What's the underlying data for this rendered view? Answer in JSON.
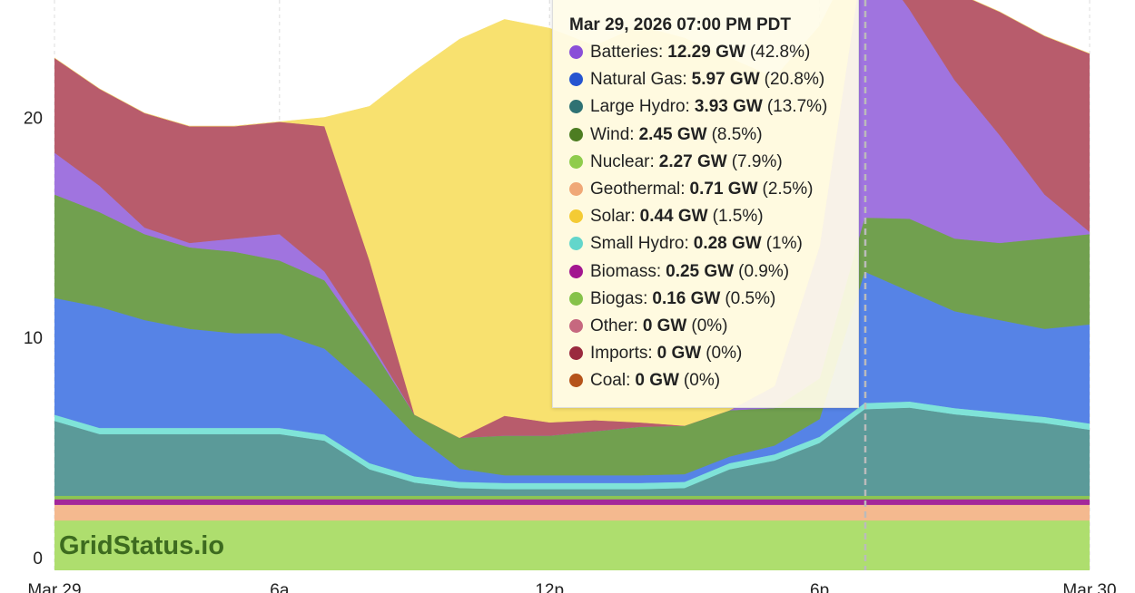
{
  "chart_data": {
    "type": "stacked_area",
    "x": [
      1,
      2,
      3,
      4,
      5,
      6,
      7,
      8,
      9,
      10,
      11,
      12,
      13,
      14,
      15,
      16,
      17,
      18,
      19,
      20,
      21,
      22,
      23,
      24
    ],
    "xlim": [
      1,
      24
    ],
    "xticks": [
      {
        "value": 1,
        "label": "Mar 29"
      },
      {
        "value": 6,
        "label": "6a"
      },
      {
        "value": 12,
        "label": "12p"
      },
      {
        "value": 18,
        "label": "6p"
      },
      {
        "value": 24,
        "label": "Mar 30"
      }
    ],
    "ylim": [
      0,
      25.9
    ],
    "yticks": [
      0,
      10,
      20
    ],
    "grid": true,
    "series": [
      {
        "color": "#aede6e",
        "values": [
          2.27,
          2.27,
          2.27,
          2.27,
          2.27,
          2.27,
          2.27,
          2.27,
          2.27,
          2.27,
          2.27,
          2.27,
          2.27,
          2.27,
          2.27,
          2.27,
          2.27,
          2.27,
          2.27,
          2.27,
          2.27,
          2.27,
          2.27,
          2.27
        ]
      },
      {
        "color": "#f4b98f",
        "values": [
          0.71,
          0.71,
          0.71,
          0.71,
          0.71,
          0.71,
          0.71,
          0.71,
          0.71,
          0.71,
          0.71,
          0.71,
          0.71,
          0.71,
          0.71,
          0.71,
          0.71,
          0.71,
          0.71,
          0.71,
          0.71,
          0.71,
          0.71,
          0.71
        ]
      },
      {
        "color": "#a3279a",
        "values": [
          0.25,
          0.25,
          0.25,
          0.25,
          0.25,
          0.25,
          0.25,
          0.25,
          0.25,
          0.25,
          0.25,
          0.25,
          0.25,
          0.25,
          0.25,
          0.25,
          0.25,
          0.25,
          0.25,
          0.25,
          0.25,
          0.25,
          0.25,
          0.25
        ]
      },
      {
        "color": "#8cc653",
        "values": [
          0.16,
          0.16,
          0.16,
          0.16,
          0.16,
          0.16,
          0.16,
          0.16,
          0.16,
          0.16,
          0.16,
          0.16,
          0.16,
          0.16,
          0.16,
          0.16,
          0.16,
          0.16,
          0.16,
          0.16,
          0.16,
          0.16,
          0.16,
          0.16
        ]
      },
      {
        "color": "#5b9a99",
        "values": [
          3.4,
          2.8,
          2.8,
          2.8,
          2.8,
          2.8,
          2.5,
          1.2,
          0.6,
          0.35,
          0.3,
          0.3,
          0.3,
          0.3,
          0.35,
          1.2,
          1.6,
          2.4,
          3.93,
          4.0,
          3.7,
          3.5,
          3.3,
          3.0
        ]
      },
      {
        "color": "#7fe3d8",
        "values": [
          0.28,
          0.28,
          0.28,
          0.28,
          0.28,
          0.28,
          0.28,
          0.28,
          0.28,
          0.28,
          0.28,
          0.28,
          0.28,
          0.28,
          0.28,
          0.28,
          0.28,
          0.28,
          0.28,
          0.28,
          0.28,
          0.28,
          0.28,
          0.28
        ]
      },
      {
        "color": "#5683e6",
        "values": [
          5.3,
          5.5,
          4.9,
          4.5,
          4.3,
          4.3,
          3.9,
          3.4,
          1.9,
          0.6,
          0.35,
          0.35,
          0.35,
          0.35,
          0.35,
          0.3,
          0.4,
          0.8,
          5.97,
          5.0,
          4.4,
          4.2,
          4.0,
          4.5
        ]
      },
      {
        "color": "#71a04f",
        "values": [
          4.7,
          4.3,
          3.9,
          3.7,
          3.7,
          3.3,
          3.1,
          2.0,
          0.9,
          1.4,
          1.8,
          1.8,
          2.0,
          2.2,
          2.2,
          2.1,
          1.7,
          1.85,
          2.45,
          3.3,
          3.3,
          3.5,
          4.1,
          4.1
        ]
      },
      {
        "color": "#a074df",
        "values": [
          1.9,
          1.2,
          0.3,
          0.2,
          0.6,
          1.2,
          0.4,
          0.2,
          0,
          0,
          0,
          0,
          0,
          0,
          0,
          0,
          1,
          6,
          12.29,
          9.5,
          7.2,
          4.9,
          2.0,
          0.1
        ]
      },
      {
        "color": "#b85c6c",
        "values": [
          4.3,
          4.4,
          5.2,
          5.3,
          5.1,
          5.1,
          6.6,
          3.6,
          0,
          0,
          0.9,
          0.6,
          0.5,
          0.2,
          0,
          0,
          0,
          0,
          0,
          1.0,
          4.0,
          5.6,
          7.2,
          8.1
        ]
      },
      {
        "color": "#f8e16f",
        "values": [
          0,
          0,
          0,
          0,
          0,
          0,
          0.4,
          7.0,
          15.6,
          18.1,
          18.0,
          17.9,
          17.0,
          18.0,
          17.6,
          16,
          14,
          10,
          0.44,
          0,
          0,
          0,
          0,
          0
        ]
      }
    ]
  },
  "tooltip": {
    "title": "Mar 29, 2026 07:00 PM PDT",
    "items": [
      {
        "label": "Batteries:",
        "value": "12.29 GW",
        "share": "(42.8%)",
        "color": "#8a4fd8"
      },
      {
        "label": "Natural Gas:",
        "value": "5.97 GW",
        "share": "(20.8%)",
        "color": "#2554d0"
      },
      {
        "label": "Large Hydro:",
        "value": "3.93 GW",
        "share": "(13.7%)",
        "color": "#2f7273"
      },
      {
        "label": "Wind:",
        "value": "2.45 GW",
        "share": "(8.5%)",
        "color": "#4d7d22"
      },
      {
        "label": "Nuclear:",
        "value": "2.27 GW",
        "share": "(7.9%)",
        "color": "#8fcc4c"
      },
      {
        "label": "Geothermal:",
        "value": "0.71 GW",
        "share": "(2.5%)",
        "color": "#f0a877"
      },
      {
        "label": "Solar:",
        "value": "0.44 GW",
        "share": "(1.5%)",
        "color": "#f4cb34"
      },
      {
        "label": "Small Hydro:",
        "value": "0.28 GW",
        "share": "(1%)",
        "color": "#63d6cb"
      },
      {
        "label": "Biomass:",
        "value": "0.25 GW",
        "share": "(0.9%)",
        "color": "#a3168f"
      },
      {
        "label": "Biogas:",
        "value": "0.16 GW",
        "share": "(0.5%)",
        "color": "#86c24a"
      },
      {
        "label": "Other:",
        "value": "0 GW",
        "share": "(0%)",
        "color": "#c6687f"
      },
      {
        "label": "Imports:",
        "value": "0 GW",
        "share": "(0%)",
        "color": "#9a2a3e"
      },
      {
        "label": "Coal:",
        "value": "0 GW",
        "share": "(0%)",
        "color": "#b5531a"
      }
    ]
  },
  "watermark": "GridStatus.io"
}
